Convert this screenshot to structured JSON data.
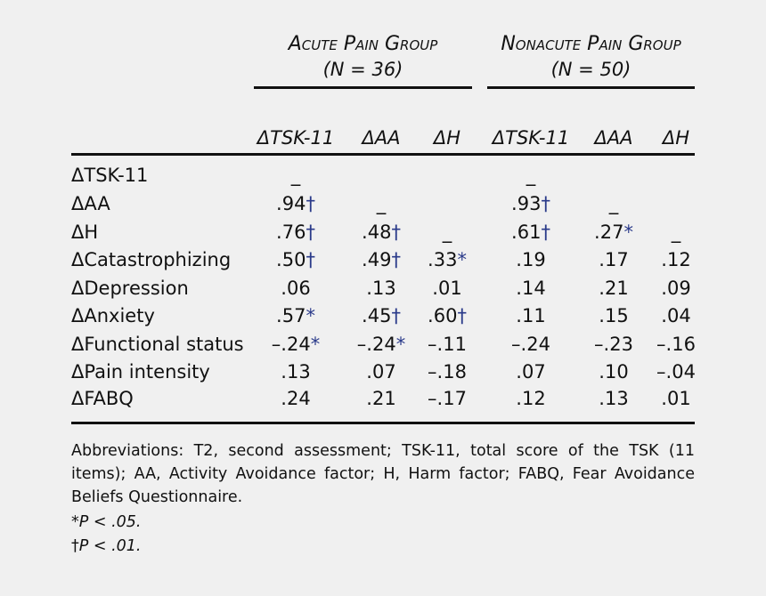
{
  "groups": [
    {
      "title": "Acute Pain Group",
      "n": "(N = 36)"
    },
    {
      "title": "Nonacute Pain Group",
      "n": "(N = 50)"
    }
  ],
  "columns": [
    "ΔTSK-11",
    "ΔAA",
    "ΔH",
    "ΔTSK-11",
    "ΔAA",
    "ΔH"
  ],
  "rows": [
    {
      "label": "ΔTSK-11",
      "cells": [
        {
          "v": "_"
        },
        {
          "v": ""
        },
        {
          "v": ""
        },
        {
          "v": "_"
        },
        {
          "v": ""
        },
        {
          "v": ""
        }
      ]
    },
    {
      "label": "ΔAA",
      "cells": [
        {
          "v": ".94",
          "s": "†"
        },
        {
          "v": "_"
        },
        {
          "v": ""
        },
        {
          "v": ".93",
          "s": "†"
        },
        {
          "v": "_"
        },
        {
          "v": ""
        }
      ]
    },
    {
      "label": "ΔH",
      "cells": [
        {
          "v": ".76",
          "s": "†"
        },
        {
          "v": ".48",
          "s": "†"
        },
        {
          "v": "_"
        },
        {
          "v": ".61",
          "s": "†"
        },
        {
          "v": ".27",
          "s": "*"
        },
        {
          "v": "_"
        }
      ]
    },
    {
      "label": "ΔCatastrophizing",
      "cells": [
        {
          "v": ".50",
          "s": "†"
        },
        {
          "v": ".49",
          "s": "†"
        },
        {
          "v": ".33",
          "s": "*"
        },
        {
          "v": ".19"
        },
        {
          "v": ".17"
        },
        {
          "v": ".12"
        }
      ]
    },
    {
      "label": "ΔDepression",
      "cells": [
        {
          "v": ".06"
        },
        {
          "v": ".13"
        },
        {
          "v": ".01"
        },
        {
          "v": ".14"
        },
        {
          "v": ".21"
        },
        {
          "v": ".09"
        }
      ]
    },
    {
      "label": "ΔAnxiety",
      "cells": [
        {
          "v": ".57",
          "s": "*"
        },
        {
          "v": ".45",
          "s": "†"
        },
        {
          "v": ".60",
          "s": "†"
        },
        {
          "v": ".11"
        },
        {
          "v": ".15"
        },
        {
          "v": ".04"
        }
      ]
    },
    {
      "label": "ΔFunctional status",
      "cells": [
        {
          "v": "–.24",
          "s": "*"
        },
        {
          "v": "–.24",
          "s": "*"
        },
        {
          "v": "–.11"
        },
        {
          "v": "–.24"
        },
        {
          "v": "–.23"
        },
        {
          "v": "–.16"
        }
      ]
    },
    {
      "label": "ΔPain intensity",
      "cells": [
        {
          "v": ".13"
        },
        {
          "v": ".07"
        },
        {
          "v": "–.18"
        },
        {
          "v": ".07"
        },
        {
          "v": ".10"
        },
        {
          "v": "–.04"
        }
      ]
    },
    {
      "label": "ΔFABQ",
      "cells": [
        {
          "v": ".24"
        },
        {
          "v": ".21"
        },
        {
          "v": "–.17"
        },
        {
          "v": ".12"
        },
        {
          "v": ".13"
        },
        {
          "v": ".01"
        }
      ]
    }
  ],
  "footnotes": {
    "abbreviations": "Abbreviations: T2, second assessment; TSK-11, total score of the TSK (11 items); AA, Activity Avoidance factor; H, Harm factor; FABQ, Fear Avoidance Beliefs Questionnaire.",
    "p05": {
      "mark": "*",
      "text": "P < .05."
    },
    "p01": {
      "mark": "†",
      "text": "P < .01."
    }
  },
  "colors": {
    "background": "#f0f0f0",
    "text": "#111111",
    "symbol": "#2a3a8a"
  }
}
